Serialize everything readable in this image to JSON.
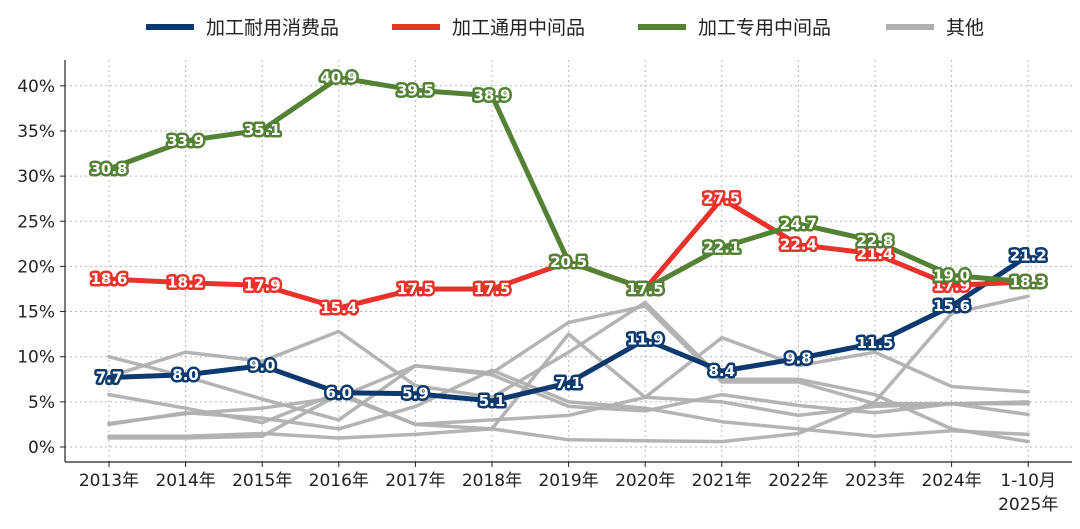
{
  "chart_data": {
    "type": "line",
    "title": "",
    "xlabel": "",
    "ylabel": "",
    "ylim": [
      0,
      43
    ],
    "y_ticks": [
      0,
      5,
      10,
      15,
      20,
      25,
      30,
      35,
      40
    ],
    "y_tick_labels": [
      "0%",
      "5%",
      "10%",
      "15%",
      "20%",
      "25%",
      "30%",
      "35%",
      "40%"
    ],
    "grid": true,
    "legend_position": "top",
    "categories": [
      "2013年",
      "2014年",
      "2015年",
      "2016年",
      "2017年",
      "2018年",
      "2019年",
      "2020年",
      "2021年",
      "2022年",
      "2023年",
      "2024年",
      "1-10月"
    ],
    "category_sublabels": [
      "",
      "",
      "",
      "",
      "",
      "",
      "",
      "",
      "",
      "",
      "",
      "",
      "2025年"
    ],
    "series": [
      {
        "name": "加工耐用消费品",
        "color": "#0d3a6e",
        "labeled": true,
        "values": [
          7.7,
          8.0,
          9.0,
          6.0,
          5.9,
          5.1,
          7.1,
          11.9,
          8.4,
          9.8,
          11.5,
          15.6,
          21.2
        ],
        "labels": [
          "7.7",
          "8.0",
          "9.0",
          "6.0",
          "5.9",
          "5.1",
          "7.1",
          "11.9",
          "8.4",
          "9.8",
          "11.5",
          "15.6",
          "21.2"
        ]
      },
      {
        "name": "加工通用中间品",
        "color": "#e8322a",
        "labeled": true,
        "values": [
          18.6,
          18.2,
          17.9,
          15.4,
          17.5,
          17.5,
          20.5,
          17.5,
          27.5,
          22.4,
          21.4,
          17.9,
          18.3
        ],
        "labels": [
          "18.6",
          "18.2",
          "17.9",
          "15.4",
          "17.5",
          "17.5",
          "20.5",
          "17.5",
          "27.5",
          "22.4",
          "21.4",
          "17.9",
          "18.3"
        ]
      },
      {
        "name": "加工专用中间品",
        "color": "#548235",
        "labeled": true,
        "values": [
          30.8,
          33.9,
          35.1,
          40.9,
          39.5,
          38.9,
          20.5,
          17.5,
          22.1,
          24.7,
          22.8,
          19.0,
          18.3
        ],
        "labels": [
          "30.8",
          "33.9",
          "35.1",
          "40.9",
          "39.5",
          "38.9",
          "20.5",
          "17.5",
          "22.1",
          "24.7",
          "22.8",
          "19.0",
          "18.3"
        ]
      },
      {
        "name": "其他",
        "color": "#b0b0b0",
        "labeled": false,
        "values": [
          5.8,
          4.3,
          2.7,
          6.0,
          2.5,
          2.0,
          12.5,
          5.5,
          12.1,
          9.0,
          10.5,
          6.7,
          6.1
        ]
      },
      {
        "name": "",
        "color": "#b0b0b0",
        "labeled": false,
        "values": [
          10.0,
          7.8,
          5.3,
          3.0,
          9.0,
          8.2,
          13.8,
          15.6,
          7.2,
          7.2,
          4.8,
          4.8,
          3.6
        ]
      },
      {
        "name": "",
        "color": "#b0b0b0",
        "labeled": false,
        "values": [
          2.6,
          3.7,
          4.3,
          5.5,
          9.0,
          8.0,
          4.5,
          4.0,
          5.8,
          4.6,
          3.8,
          4.8,
          5.0
        ]
      },
      {
        "name": "",
        "color": "#b0b0b0",
        "labeled": false,
        "values": [
          1.2,
          1.2,
          1.5,
          1.0,
          1.4,
          2.0,
          0.8,
          0.7,
          0.6,
          1.5,
          5.0,
          14.8,
          16.7
        ]
      },
      {
        "name": "",
        "color": "#b0b0b0",
        "labeled": false,
        "values": [
          7.8,
          10.5,
          9.5,
          12.8,
          6.8,
          5.5,
          10.5,
          16.0,
          7.5,
          7.5,
          5.8,
          2.0,
          0.6
        ]
      },
      {
        "name": "",
        "color": "#b0b0b0",
        "labeled": false,
        "values": [
          2.5,
          3.8,
          3.2,
          2.0,
          4.5,
          8.5,
          5.0,
          4.3,
          2.8,
          2.0,
          1.2,
          1.8,
          1.4
        ]
      },
      {
        "name": "",
        "color": "#b0b0b0",
        "labeled": false,
        "values": [
          1.0,
          1.0,
          1.2,
          5.8,
          2.5,
          3.0,
          3.5,
          5.5,
          5.0,
          3.5,
          4.5,
          4.8,
          4.8
        ]
      }
    ]
  }
}
